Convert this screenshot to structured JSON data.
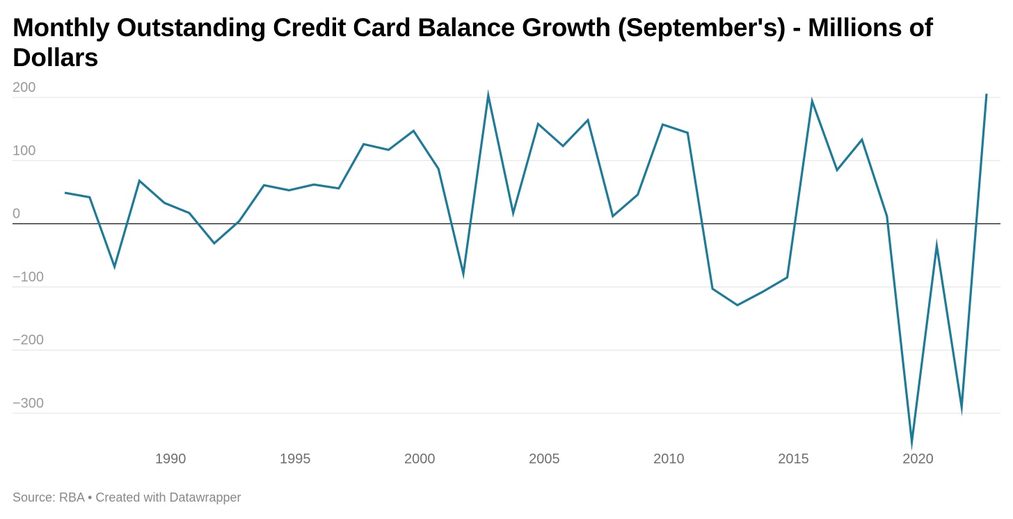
{
  "title": "Monthly Outstanding Credit Card Balance Growth (September's) - Millions of Dollars",
  "footer": {
    "source": "Source: RBA",
    "separator": "•",
    "credit": "Created with Datawrapper"
  },
  "chart_data": {
    "type": "line",
    "title": "Monthly Outstanding Credit Card Balance Growth (September's) - Millions of Dollars",
    "xlabel": "",
    "ylabel": "",
    "xlim": [
      1985.7,
      2023.75
    ],
    "ylim": [
      -350,
      210
    ],
    "grid": true,
    "legend": "none",
    "line_color": "#1c7b98",
    "yticks": [
      200,
      100,
      0,
      -100,
      -200,
      -300
    ],
    "ytick_labels": [
      "200",
      "100",
      "0",
      "−100",
      "−200",
      "−300"
    ],
    "xticks": [
      1990,
      1995,
      2000,
      2005,
      2010,
      2015,
      2020
    ],
    "xtick_labels": [
      "1990",
      "1995",
      "2000",
      "2005",
      "2010",
      "2015",
      "2020"
    ],
    "x": [
      1985.75,
      1986.75,
      1987.75,
      1988.75,
      1989.75,
      1990.75,
      1991.75,
      1992.75,
      1993.75,
      1994.75,
      1995.75,
      1996.75,
      1997.75,
      1998.75,
      1999.75,
      2000.75,
      2001.75,
      2002.75,
      2003.75,
      2004.75,
      2005.75,
      2006.75,
      2007.75,
      2008.75,
      2009.75,
      2010.75,
      2011.75,
      2012.75,
      2013.75,
      2014.75,
      2015.75,
      2016.75,
      2017.75,
      2018.75,
      2019.75,
      2020.75,
      2021.75,
      2022.75
    ],
    "series": [
      {
        "values": [
          49,
          42,
          -68,
          68,
          33,
          17,
          -31,
          4,
          61,
          53,
          62,
          56,
          126,
          117,
          147,
          87,
          -79,
          203,
          17,
          158,
          123,
          164,
          12,
          46,
          157,
          144,
          -103,
          -129,
          -108,
          -85,
          194,
          85,
          133,
          12,
          -345,
          -35,
          -290,
          206
        ]
      }
    ]
  }
}
